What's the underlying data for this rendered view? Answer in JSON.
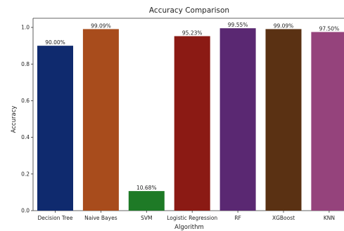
{
  "chart_data": {
    "type": "bar",
    "title": "Accuracy Comparison",
    "xlabel": "Algorithm",
    "ylabel": "Accuracy",
    "ylim": [
      0,
      1.05
    ],
    "yticks": [
      "0.0",
      "0.2",
      "0.4",
      "0.6",
      "0.8",
      "1.0"
    ],
    "grid": false,
    "categories": [
      "Decision Tree",
      "Naive Bayes",
      "SVM",
      "Logistic Regression",
      "RF",
      "XGBoost",
      "KNN"
    ],
    "values": [
      0.9,
      0.9909,
      0.1068,
      0.9523,
      0.9955,
      0.9909,
      0.975
    ],
    "data_labels": [
      "90.00%",
      "99.09%",
      "10.68%",
      "95.23%",
      "99.55%",
      "99.09%",
      "97.50%"
    ],
    "colors": [
      "#0f2a6e",
      "#a84c1c",
      "#1e7a26",
      "#8b1a14",
      "#5a2872",
      "#5a3113",
      "#95437c"
    ]
  }
}
